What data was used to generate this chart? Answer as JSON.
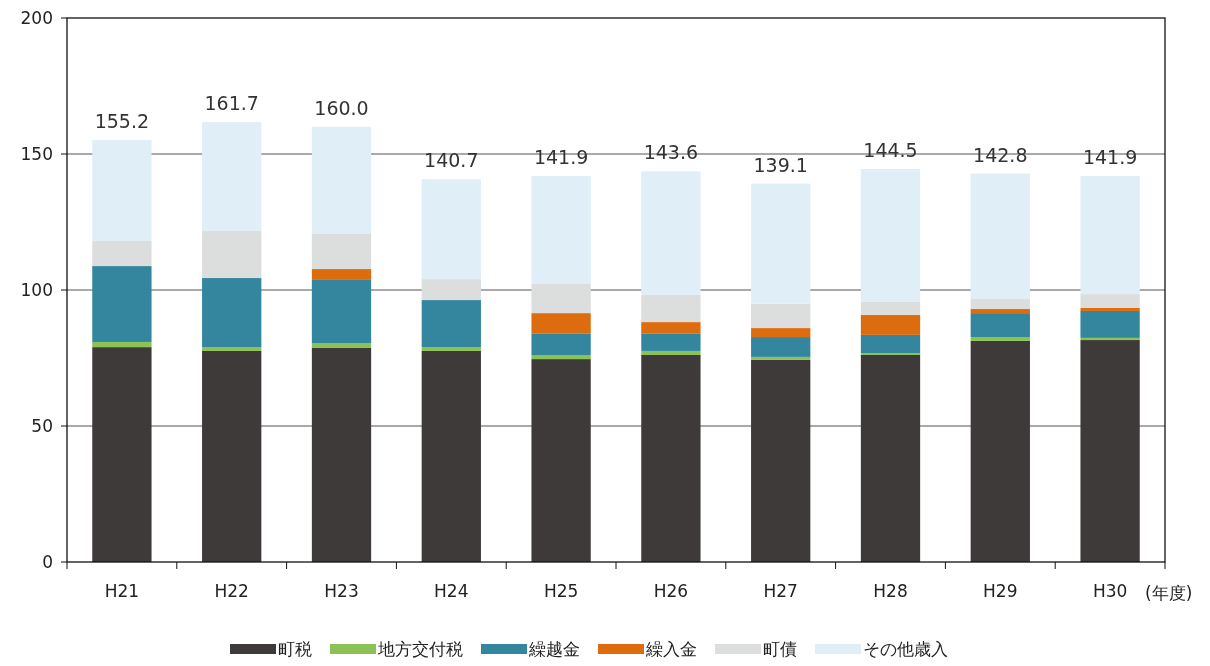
{
  "chart_data": {
    "type": "bar",
    "stacked": true,
    "xlabel": "(年度)",
    "categories": [
      "H21",
      "H22",
      "H23",
      "H24",
      "H25",
      "H26",
      "H27",
      "H28",
      "H29",
      "H30"
    ],
    "series": [
      {
        "name": "町税",
        "color": "#3e3a39",
        "values": [
          79.0,
          77.6,
          78.7,
          77.6,
          74.6,
          76.1,
          74.3,
          76.1,
          81.3,
          81.6
        ]
      },
      {
        "name": "地方交付税",
        "color": "#8bc155",
        "values": [
          1.9,
          1.4,
          1.8,
          1.4,
          1.5,
          1.5,
          1.1,
          0.7,
          1.4,
          0.8
        ]
      },
      {
        "name": "繰越金",
        "color": "#33869e",
        "values": [
          27.9,
          25.4,
          23.2,
          17.3,
          7.8,
          6.3,
          7.3,
          6.7,
          8.8,
          9.9
        ]
      },
      {
        "name": "繰入金",
        "color": "#dd6c0e",
        "values": [
          0,
          0,
          4.0,
          0,
          7.6,
          4.3,
          3.3,
          7.3,
          1.5,
          1.1
        ]
      },
      {
        "name": "町債",
        "color": "#dcdddd",
        "values": [
          9.2,
          17.3,
          12.9,
          7.7,
          10.7,
          10.0,
          8.9,
          4.8,
          3.7,
          5.1
        ]
      },
      {
        "name": "その他歳入",
        "color": "#e0eff7",
        "values": [
          37.2,
          40.0,
          39.4,
          36.7,
          39.7,
          45.4,
          44.2,
          48.9,
          46.1,
          43.4
        ]
      }
    ],
    "totals": [
      "155.2",
      "161.7",
      "160.0",
      "140.7",
      "141.9",
      "143.6",
      "139.1",
      "144.5",
      "142.8",
      "141.9"
    ],
    "ylim": [
      0,
      200
    ],
    "yticks": [
      0,
      50,
      100,
      150,
      200
    ],
    "grid": "y",
    "legend": "bottom"
  }
}
